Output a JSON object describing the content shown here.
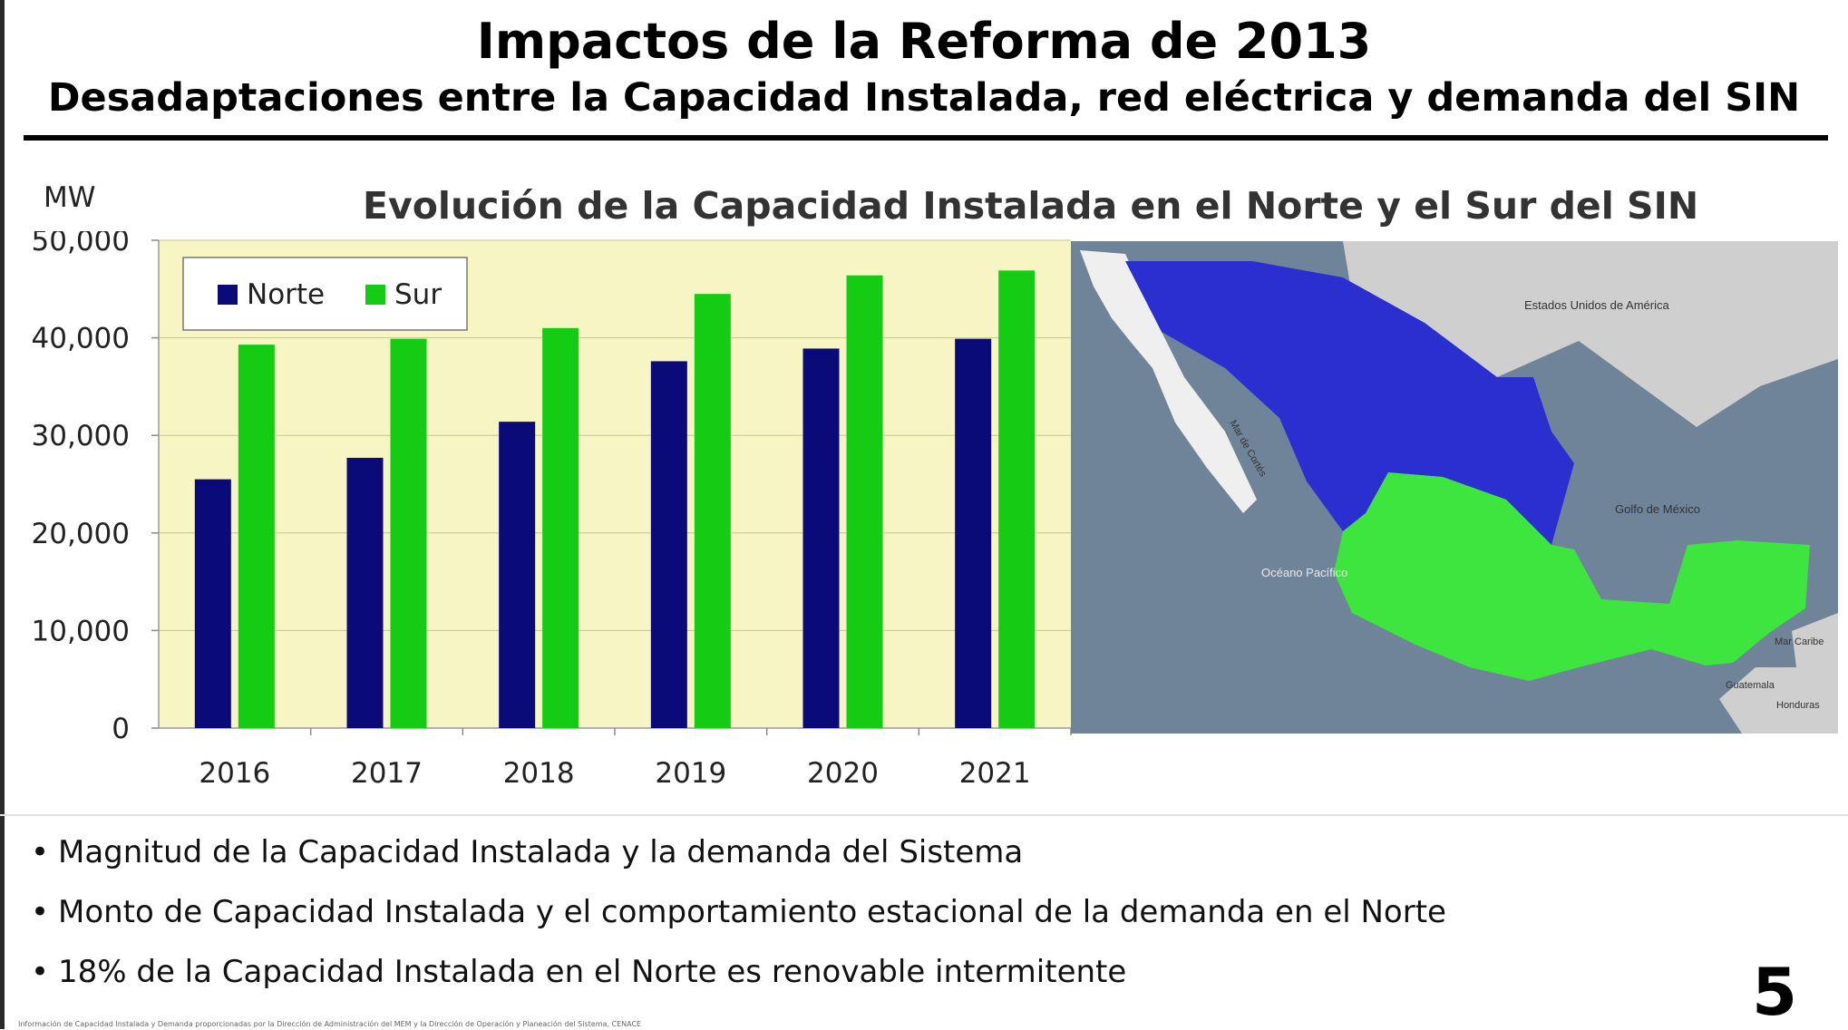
{
  "slide": {
    "title": "Impactos de la Reforma de 2013",
    "subtitle": "Desadaptaciones entre la Capacidad Instalada, red eléctrica y demanda del SIN",
    "page_number": "5",
    "footnote": "Información de Capacidad Instalada y Demanda proporcionadas por la Dirección de Administración del MEM y la Dirección de Operación y Planeación del Sistema, CENACE",
    "bullets": [
      "Magnitud de la Capacidad Instalada y la demanda del Sistema",
      "Monto de Capacidad Instalada y el comportamiento estacional de la demanda en el Norte",
      "18% de la Capacidad Instalada en el Norte es renovable intermitente"
    ]
  },
  "chart_data": {
    "type": "bar",
    "title": "Evolución de la Capacidad Instalada en el Norte y el Sur del SIN",
    "ylabel": "MW",
    "xlabel": "",
    "categories": [
      "2016",
      "2017",
      "2018",
      "2019",
      "2020",
      "2021"
    ],
    "series": [
      {
        "name": "Norte",
        "color": "#0a0a78",
        "values": [
          25500,
          27700,
          31400,
          37600,
          38900,
          39900
        ]
      },
      {
        "name": "Sur",
        "color": "#14cc14",
        "values": [
          39300,
          39900,
          41000,
          44500,
          46400,
          46900
        ]
      }
    ],
    "ylim": [
      0,
      50000
    ],
    "yticks": [
      "0",
      "10,000",
      "20,000",
      "30,000",
      "40,000",
      "50,000"
    ],
    "grid": true,
    "legend": "top-left",
    "plot_background": "#f7f5c3"
  },
  "map": {
    "labels": [
      "Estados Unidos de América",
      "Golfo de México",
      "Océano Pacífico",
      "Mar de Cortés",
      "Mar Caribe",
      "Guatemala",
      "Honduras"
    ],
    "colors": {
      "norte": "#2b2fd0",
      "sur": "#3ee53e",
      "sea": "#6f8499",
      "land": "#cfcfcf"
    }
  }
}
